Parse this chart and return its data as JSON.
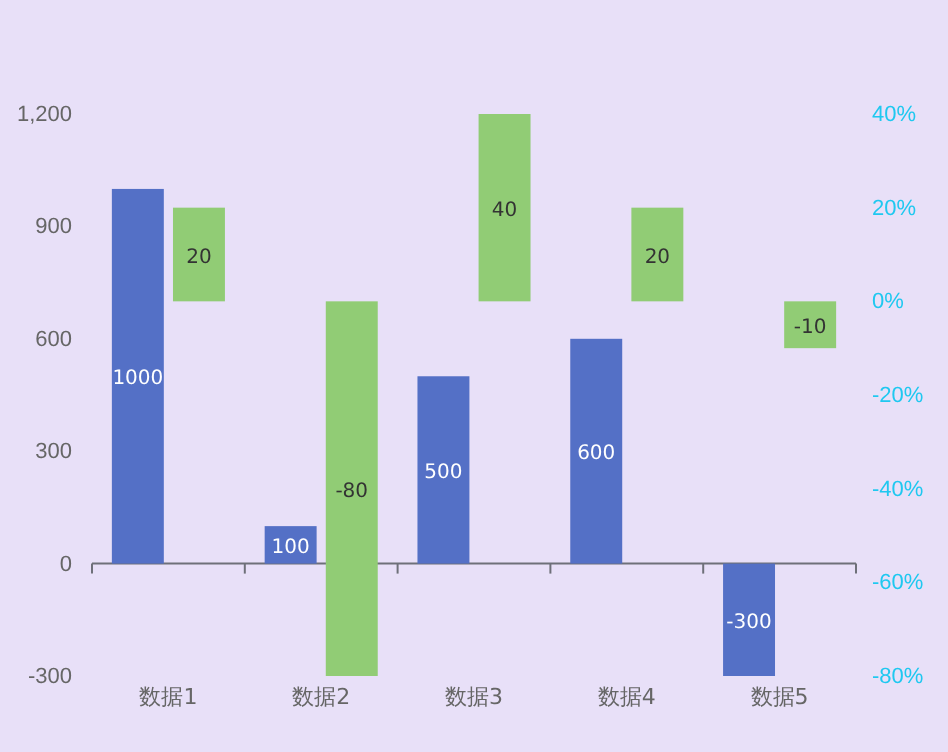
{
  "chart_data": {
    "type": "bar",
    "categories": [
      "数据1",
      "数据2",
      "数据3",
      "数据4",
      "数据5"
    ],
    "series": [
      {
        "color": "#5470c6",
        "values": [
          1000,
          100,
          500,
          600,
          -300
        ]
      },
      {
        "color": "#91cc75",
        "values": [
          20,
          -80,
          40,
          20,
          -10
        ],
        "axis": "y2"
      }
    ],
    "ylim": [
      -300,
      1200
    ],
    "yticks": [
      -300,
      0,
      300,
      600,
      900,
      {
        "value": 1200,
        "label": "1,200"
      }
    ],
    "y2lim": [
      -80,
      40
    ],
    "y2ticks": [
      {
        "value": -80,
        "label": "-80%"
      },
      {
        "value": -60,
        "label": "-60%"
      },
      {
        "value": -40,
        "label": "-40%"
      },
      {
        "value": -20,
        "label": "-20%"
      },
      {
        "value": 0,
        "label": "0%"
      },
      {
        "value": 20,
        "label": "20%"
      },
      {
        "value": 40,
        "label": "40%"
      }
    ],
    "data_labels": true
  }
}
